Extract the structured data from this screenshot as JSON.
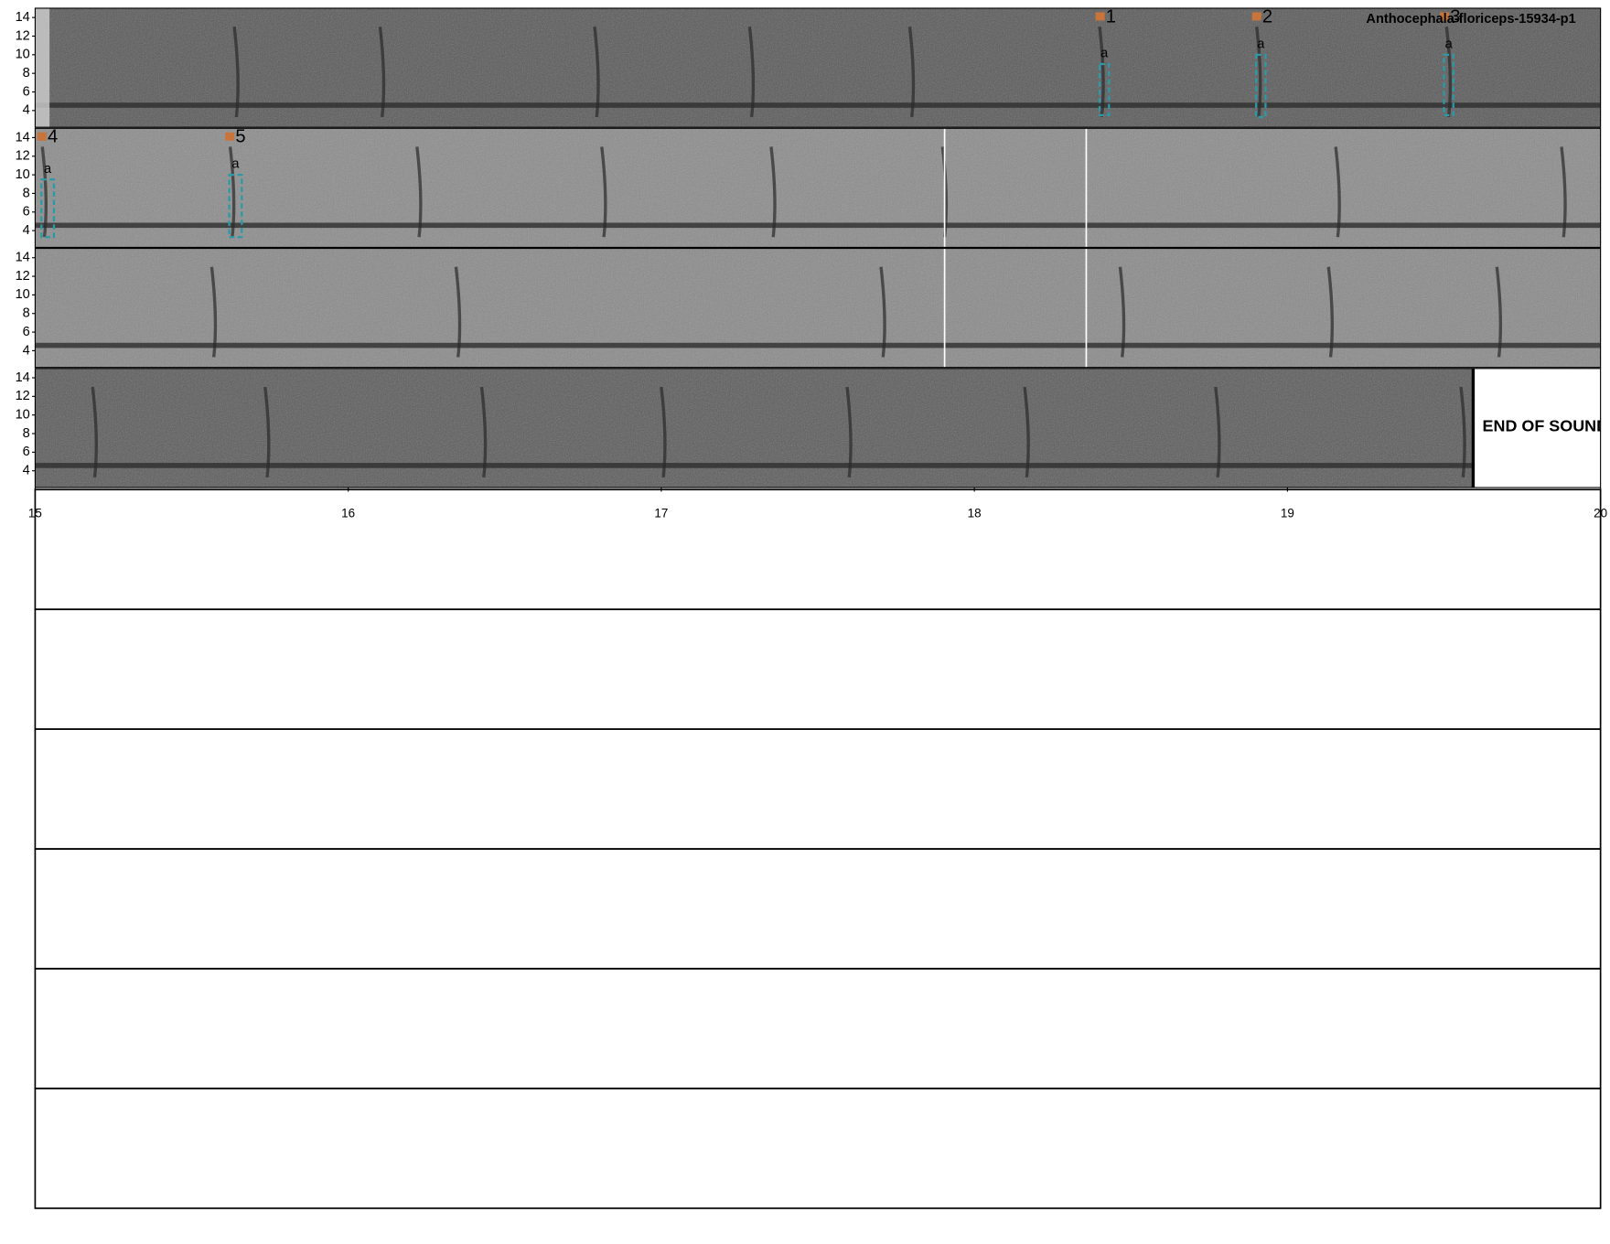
{
  "chart_data": {
    "type": "spectrogram",
    "title": "Anthocephala-floriceps-15934-p1",
    "rows": [
      {
        "xlim": [
          0,
          5
        ]
      },
      {
        "xlim": [
          5,
          10
        ]
      },
      {
        "xlim": [
          10,
          15
        ]
      },
      {
        "xlim": [
          15,
          20
        ]
      }
    ],
    "ylim": [
      2.2,
      15
    ],
    "yticks": [
      4,
      6,
      8,
      10,
      12,
      14
    ],
    "xticks": [
      15,
      16,
      17,
      18,
      19,
      20
    ],
    "annotations": [
      {
        "id": 1,
        "label": "a",
        "t0": 3.4,
        "t1": 3.43,
        "f0": 3.5,
        "f1": 9
      },
      {
        "id": 2,
        "label": "a",
        "t0": 3.9,
        "t1": 3.93,
        "f0": 3.3,
        "f1": 10
      },
      {
        "id": 3,
        "label": "a",
        "t0": 4.5,
        "t1": 4.53,
        "f0": 3.5,
        "f1": 10
      },
      {
        "id": 4,
        "label": "a",
        "t0": 5.02,
        "t1": 5.06,
        "f0": 3.3,
        "f1": 9.5
      },
      {
        "id": 5,
        "label": "a",
        "t0": 5.62,
        "t1": 5.66,
        "f0": 3.3,
        "f1": 10
      }
    ],
    "box_color": "#2a9aa8",
    "marker_color": "#c8743a",
    "end_of_sound": 19.59,
    "end_label": "END OF SOUND"
  }
}
